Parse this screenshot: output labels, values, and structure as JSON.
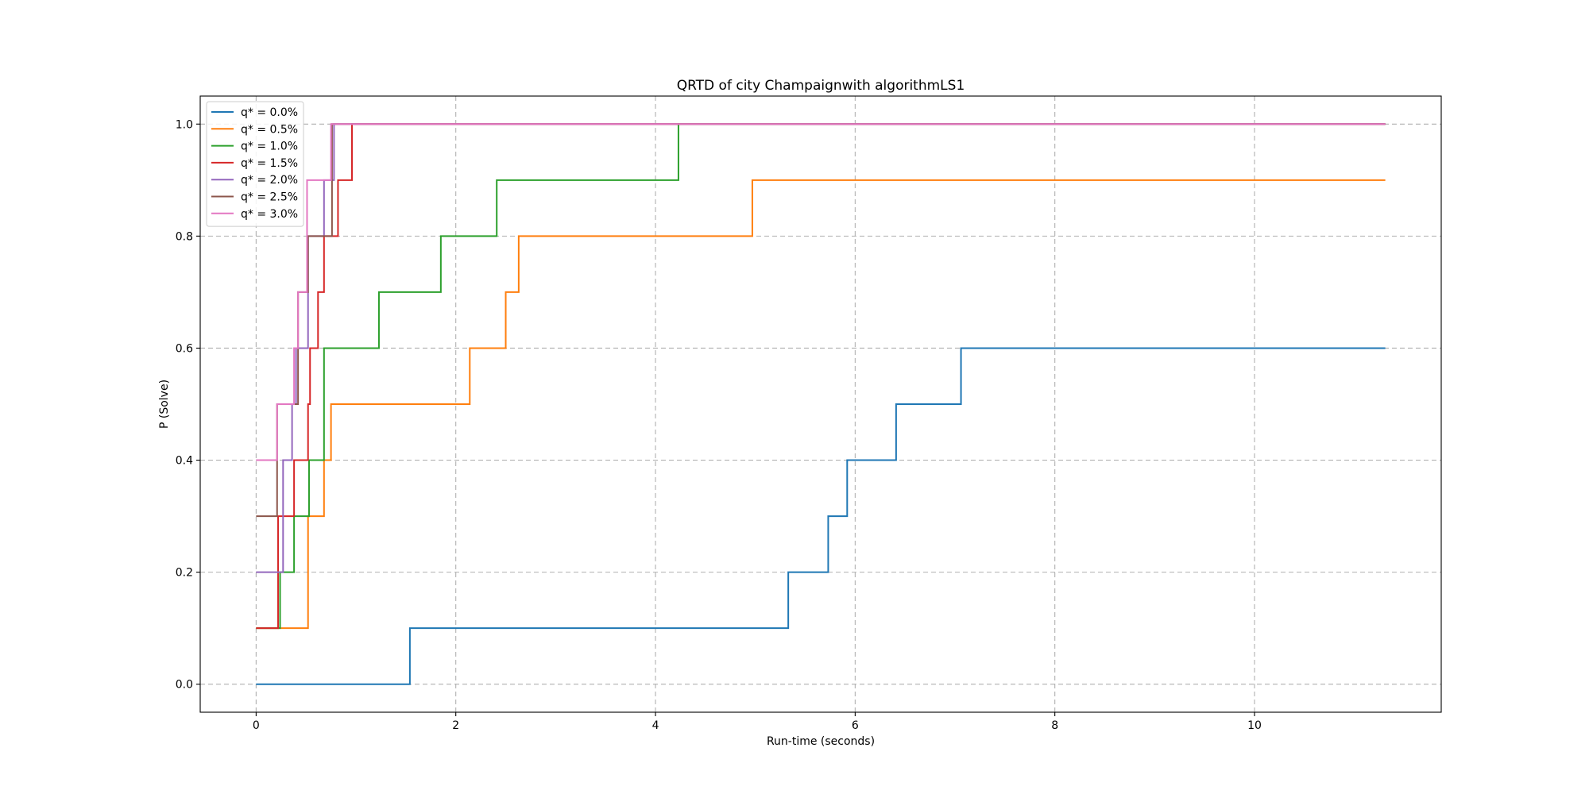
{
  "chart_data": {
    "type": "line",
    "step": "post",
    "title": "QRTD of city Champaignwith algorithmLS1",
    "xlabel": "Run-time (seconds)",
    "ylabel": "P (Solve)",
    "xlim": [
      -0.56,
      11.87
    ],
    "ylim": [
      -0.05,
      1.05
    ],
    "xticks": [
      0,
      2,
      4,
      6,
      8,
      10
    ],
    "yticks": [
      0.0,
      0.2,
      0.4,
      0.6,
      0.8,
      1.0
    ],
    "xtick_labels": [
      "0",
      "2",
      "4",
      "6",
      "8",
      "10"
    ],
    "ytick_labels": [
      "0.0",
      "0.2",
      "0.4",
      "0.6",
      "0.8",
      "1.0"
    ],
    "grid": true,
    "legend_position": "upper-left",
    "series": [
      {
        "name": "q* = 0.0%",
        "color": "#1f77b4",
        "x": [
          0,
          1.54,
          5.33,
          5.73,
          5.92,
          6.41,
          7.06,
          11.31
        ],
        "y": [
          0.0,
          0.1,
          0.2,
          0.3,
          0.4,
          0.5,
          0.6,
          0.6
        ]
      },
      {
        "name": "q* = 0.5%",
        "color": "#ff7f0e",
        "x": [
          0,
          0.52,
          0.68,
          0.75,
          2.14,
          2.5,
          2.63,
          4.97,
          11.31
        ],
        "y": [
          0.1,
          0.3,
          0.4,
          0.5,
          0.6,
          0.7,
          0.8,
          0.9,
          0.9
        ]
      },
      {
        "name": "q* = 1.0%",
        "color": "#2ca02c",
        "x": [
          0,
          0.24,
          0.38,
          0.53,
          0.68,
          1.23,
          1.85,
          2.41,
          4.23,
          11.31
        ],
        "y": [
          0.1,
          0.2,
          0.3,
          0.4,
          0.6,
          0.7,
          0.8,
          0.9,
          1.0,
          1.0
        ]
      },
      {
        "name": "q* = 1.5%",
        "color": "#d62728",
        "x": [
          0,
          0.22,
          0.38,
          0.52,
          0.54,
          0.62,
          0.68,
          0.82,
          0.96,
          11.31
        ],
        "y": [
          0.1,
          0.3,
          0.4,
          0.5,
          0.6,
          0.7,
          0.8,
          0.9,
          1.0,
          1.0
        ]
      },
      {
        "name": "q* = 2.0%",
        "color": "#9467bd",
        "x": [
          0,
          0.27,
          0.36,
          0.4,
          0.52,
          0.68,
          0.78,
          11.31
        ],
        "y": [
          0.2,
          0.4,
          0.5,
          0.6,
          0.8,
          0.9,
          1.0,
          1.0
        ]
      },
      {
        "name": "q* = 2.5%",
        "color": "#8c564b",
        "x": [
          0,
          0.21,
          0.42,
          0.52,
          0.76,
          11.31
        ],
        "y": [
          0.3,
          0.5,
          0.7,
          0.8,
          1.0,
          1.0
        ]
      },
      {
        "name": "q* = 3.0%",
        "color": "#e377c2",
        "x": [
          0,
          0.21,
          0.38,
          0.42,
          0.51,
          0.75,
          11.31
        ],
        "y": [
          0.4,
          0.5,
          0.6,
          0.7,
          0.9,
          1.0,
          1.0
        ]
      }
    ]
  }
}
